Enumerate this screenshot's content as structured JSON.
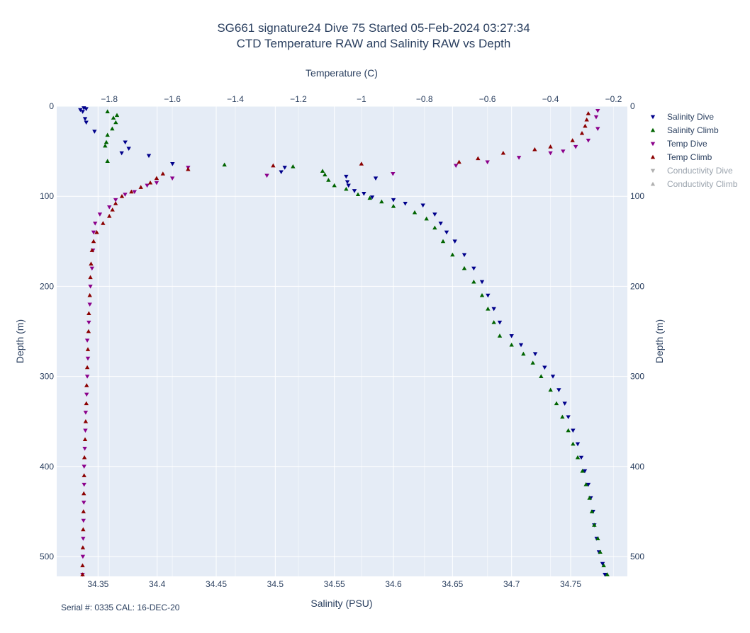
{
  "chart_data": {
    "type": "scatter",
    "title": [
      "SG661 signature24 Dive 75 Started 05-Feb-2024 03:27:34",
      "CTD Temperature RAW and Salinity RAW vs Depth"
    ],
    "xlabel_bottom": "Salinity (PSU)",
    "xlabel_top": "Temperature (C)",
    "ylabel": "Depth (m)",
    "footnote": "Serial #: 0335  CAL: 16-DEC-20",
    "x_bottom_range": [
      34.315,
      34.798
    ],
    "x_top_range": [
      -1.967,
      -0.156
    ],
    "y_range": [
      0,
      522
    ],
    "y_reversed": true,
    "grid": true,
    "legend_placement": "right",
    "x_bottom_ticks": [
      "34.35",
      "34.4",
      "34.45",
      "34.5",
      "34.55",
      "34.6",
      "34.65",
      "34.7",
      "34.75"
    ],
    "x_bottom_tick_values": [
      34.35,
      34.4,
      34.45,
      34.5,
      34.55,
      34.6,
      34.65,
      34.7,
      34.75
    ],
    "x_top_ticks": [
      "−1.8",
      "−1.6",
      "−1.4",
      "−1.2",
      "−1",
      "−0.8",
      "−0.6",
      "−0.4",
      "−0.2"
    ],
    "x_top_tick_values": [
      -1.8,
      -1.6,
      -1.4,
      -1.2,
      -1.0,
      -0.8,
      -0.6,
      -0.4,
      -0.2
    ],
    "y_ticks": [
      "0",
      "100",
      "200",
      "300",
      "400",
      "500"
    ],
    "y_tick_values": [
      0,
      100,
      200,
      300,
      400,
      500
    ],
    "series": [
      {
        "name": "Salinity Dive",
        "color": "#00008b",
        "marker": "triangle-down",
        "axis": "salinity",
        "visible": true,
        "points": [
          [
            34.335,
            4
          ],
          [
            34.338,
            2
          ],
          [
            34.34,
            3
          ],
          [
            34.337,
            6
          ],
          [
            34.339,
            14
          ],
          [
            34.34,
            18
          ],
          [
            34.347,
            28
          ],
          [
            34.373,
            40
          ],
          [
            34.376,
            47
          ],
          [
            34.37,
            52
          ],
          [
            34.393,
            55
          ],
          [
            34.413,
            64
          ],
          [
            34.508,
            68
          ],
          [
            34.505,
            73
          ],
          [
            34.56,
            78
          ],
          [
            34.585,
            80
          ],
          [
            34.561,
            84
          ],
          [
            34.562,
            88
          ],
          [
            34.567,
            94
          ],
          [
            34.575,
            97
          ],
          [
            34.582,
            101
          ],
          [
            34.6,
            104
          ],
          [
            34.61,
            108
          ],
          [
            34.625,
            110
          ],
          [
            34.635,
            120
          ],
          [
            34.64,
            130
          ],
          [
            34.645,
            140
          ],
          [
            34.652,
            150
          ],
          [
            34.66,
            165
          ],
          [
            34.668,
            180
          ],
          [
            34.675,
            195
          ],
          [
            34.68,
            210
          ],
          [
            34.685,
            225
          ],
          [
            34.69,
            240
          ],
          [
            34.7,
            255
          ],
          [
            34.708,
            265
          ],
          [
            34.72,
            275
          ],
          [
            34.728,
            290
          ],
          [
            34.735,
            300
          ],
          [
            34.74,
            315
          ],
          [
            34.745,
            330
          ],
          [
            34.748,
            345
          ],
          [
            34.752,
            360
          ],
          [
            34.756,
            375
          ],
          [
            34.759,
            390
          ],
          [
            34.762,
            405
          ],
          [
            34.765,
            420
          ],
          [
            34.767,
            435
          ],
          [
            34.769,
            450
          ],
          [
            34.77,
            465
          ],
          [
            34.772,
            480
          ],
          [
            34.774,
            495
          ],
          [
            34.777,
            508
          ],
          [
            34.779,
            520
          ]
        ]
      },
      {
        "name": "Salinity Climb",
        "color": "#006400",
        "marker": "triangle-up",
        "axis": "salinity",
        "visible": true,
        "points": [
          [
            34.358,
            6
          ],
          [
            34.366,
            10
          ],
          [
            34.363,
            13
          ],
          [
            34.365,
            18
          ],
          [
            34.362,
            25
          ],
          [
            34.358,
            32
          ],
          [
            34.357,
            40
          ],
          [
            34.356,
            44
          ],
          [
            34.358,
            61
          ],
          [
            34.457,
            65
          ],
          [
            34.515,
            67
          ],
          [
            34.54,
            72
          ],
          [
            34.542,
            76
          ],
          [
            34.545,
            82
          ],
          [
            34.55,
            88
          ],
          [
            34.56,
            92
          ],
          [
            34.57,
            98
          ],
          [
            34.58,
            102
          ],
          [
            34.59,
            106
          ],
          [
            34.6,
            111
          ],
          [
            34.618,
            118
          ],
          [
            34.628,
            125
          ],
          [
            34.635,
            135
          ],
          [
            34.642,
            150
          ],
          [
            34.65,
            165
          ],
          [
            34.66,
            180
          ],
          [
            34.668,
            195
          ],
          [
            34.675,
            210
          ],
          [
            34.68,
            225
          ],
          [
            34.685,
            240
          ],
          [
            34.69,
            255
          ],
          [
            34.7,
            265
          ],
          [
            34.71,
            275
          ],
          [
            34.718,
            285
          ],
          [
            34.725,
            300
          ],
          [
            34.733,
            315
          ],
          [
            34.738,
            330
          ],
          [
            34.743,
            345
          ],
          [
            34.748,
            360
          ],
          [
            34.752,
            375
          ],
          [
            34.756,
            390
          ],
          [
            34.76,
            405
          ],
          [
            34.763,
            420
          ],
          [
            34.766,
            435
          ],
          [
            34.768,
            450
          ],
          [
            34.77,
            465
          ],
          [
            34.773,
            480
          ],
          [
            34.775,
            495
          ],
          [
            34.778,
            510
          ],
          [
            34.781,
            520
          ]
        ]
      },
      {
        "name": "Temp Dive",
        "color": "#8b008b",
        "marker": "triangle-down",
        "axis": "temperature",
        "visible": true,
        "points": [
          [
            -0.25,
            5
          ],
          [
            -0.255,
            12
          ],
          [
            -0.25,
            25
          ],
          [
            -0.28,
            38
          ],
          [
            -0.32,
            45
          ],
          [
            -0.36,
            50
          ],
          [
            -0.4,
            52
          ],
          [
            -0.5,
            57
          ],
          [
            -0.6,
            62
          ],
          [
            -0.7,
            66
          ],
          [
            -0.9,
            75
          ],
          [
            -1.3,
            77
          ],
          [
            -1.55,
            68
          ],
          [
            -1.6,
            80
          ],
          [
            -1.65,
            85
          ],
          [
            -1.68,
            88
          ],
          [
            -1.72,
            95
          ],
          [
            -1.75,
            98
          ],
          [
            -1.78,
            104
          ],
          [
            -1.8,
            112
          ],
          [
            -1.83,
            120
          ],
          [
            -1.845,
            130
          ],
          [
            -1.85,
            140
          ],
          [
            -1.852,
            160
          ],
          [
            -1.855,
            180
          ],
          [
            -1.86,
            200
          ],
          [
            -1.862,
            220
          ],
          [
            -1.865,
            240
          ],
          [
            -1.87,
            260
          ],
          [
            -1.868,
            280
          ],
          [
            -1.87,
            300
          ],
          [
            -1.872,
            320
          ],
          [
            -1.875,
            340
          ],
          [
            -1.876,
            360
          ],
          [
            -1.878,
            380
          ],
          [
            -1.88,
            400
          ],
          [
            -1.88,
            420
          ],
          [
            -1.881,
            440
          ],
          [
            -1.882,
            460
          ],
          [
            -1.883,
            480
          ],
          [
            -1.884,
            500
          ],
          [
            -1.885,
            520
          ]
        ]
      },
      {
        "name": "Temp Climb",
        "color": "#8b0000",
        "marker": "triangle-up",
        "axis": "temperature",
        "visible": true,
        "points": [
          [
            -0.28,
            8
          ],
          [
            -0.285,
            15
          ],
          [
            -0.29,
            22
          ],
          [
            -0.3,
            30
          ],
          [
            -0.33,
            38
          ],
          [
            -0.4,
            45
          ],
          [
            -0.45,
            48
          ],
          [
            -0.55,
            52
          ],
          [
            -0.63,
            58
          ],
          [
            -0.69,
            62
          ],
          [
            -1.0,
            64
          ],
          [
            -1.28,
            66
          ],
          [
            -1.55,
            70
          ],
          [
            -1.63,
            75
          ],
          [
            -1.65,
            80
          ],
          [
            -1.67,
            85
          ],
          [
            -1.7,
            90
          ],
          [
            -1.73,
            95
          ],
          [
            -1.76,
            100
          ],
          [
            -1.78,
            108
          ],
          [
            -1.79,
            115
          ],
          [
            -1.8,
            122
          ],
          [
            -1.82,
            130
          ],
          [
            -1.84,
            140
          ],
          [
            -1.85,
            150
          ],
          [
            -1.855,
            160
          ],
          [
            -1.858,
            175
          ],
          [
            -1.86,
            190
          ],
          [
            -1.862,
            210
          ],
          [
            -1.865,
            230
          ],
          [
            -1.866,
            250
          ],
          [
            -1.868,
            270
          ],
          [
            -1.87,
            290
          ],
          [
            -1.872,
            310
          ],
          [
            -1.873,
            330
          ],
          [
            -1.875,
            350
          ],
          [
            -1.877,
            370
          ],
          [
            -1.879,
            390
          ],
          [
            -1.88,
            410
          ],
          [
            -1.881,
            430
          ],
          [
            -1.882,
            450
          ],
          [
            -1.883,
            470
          ],
          [
            -1.884,
            490
          ],
          [
            -1.885,
            510
          ],
          [
            -1.885,
            520
          ]
        ]
      },
      {
        "name": "Conductivity Dive",
        "color": "#b0b0b0",
        "marker": "triangle-down",
        "axis": "none",
        "visible": false,
        "points": []
      },
      {
        "name": "Conductivity Climb",
        "color": "#b0b0b0",
        "marker": "triangle-up",
        "axis": "none",
        "visible": false,
        "points": []
      }
    ]
  }
}
